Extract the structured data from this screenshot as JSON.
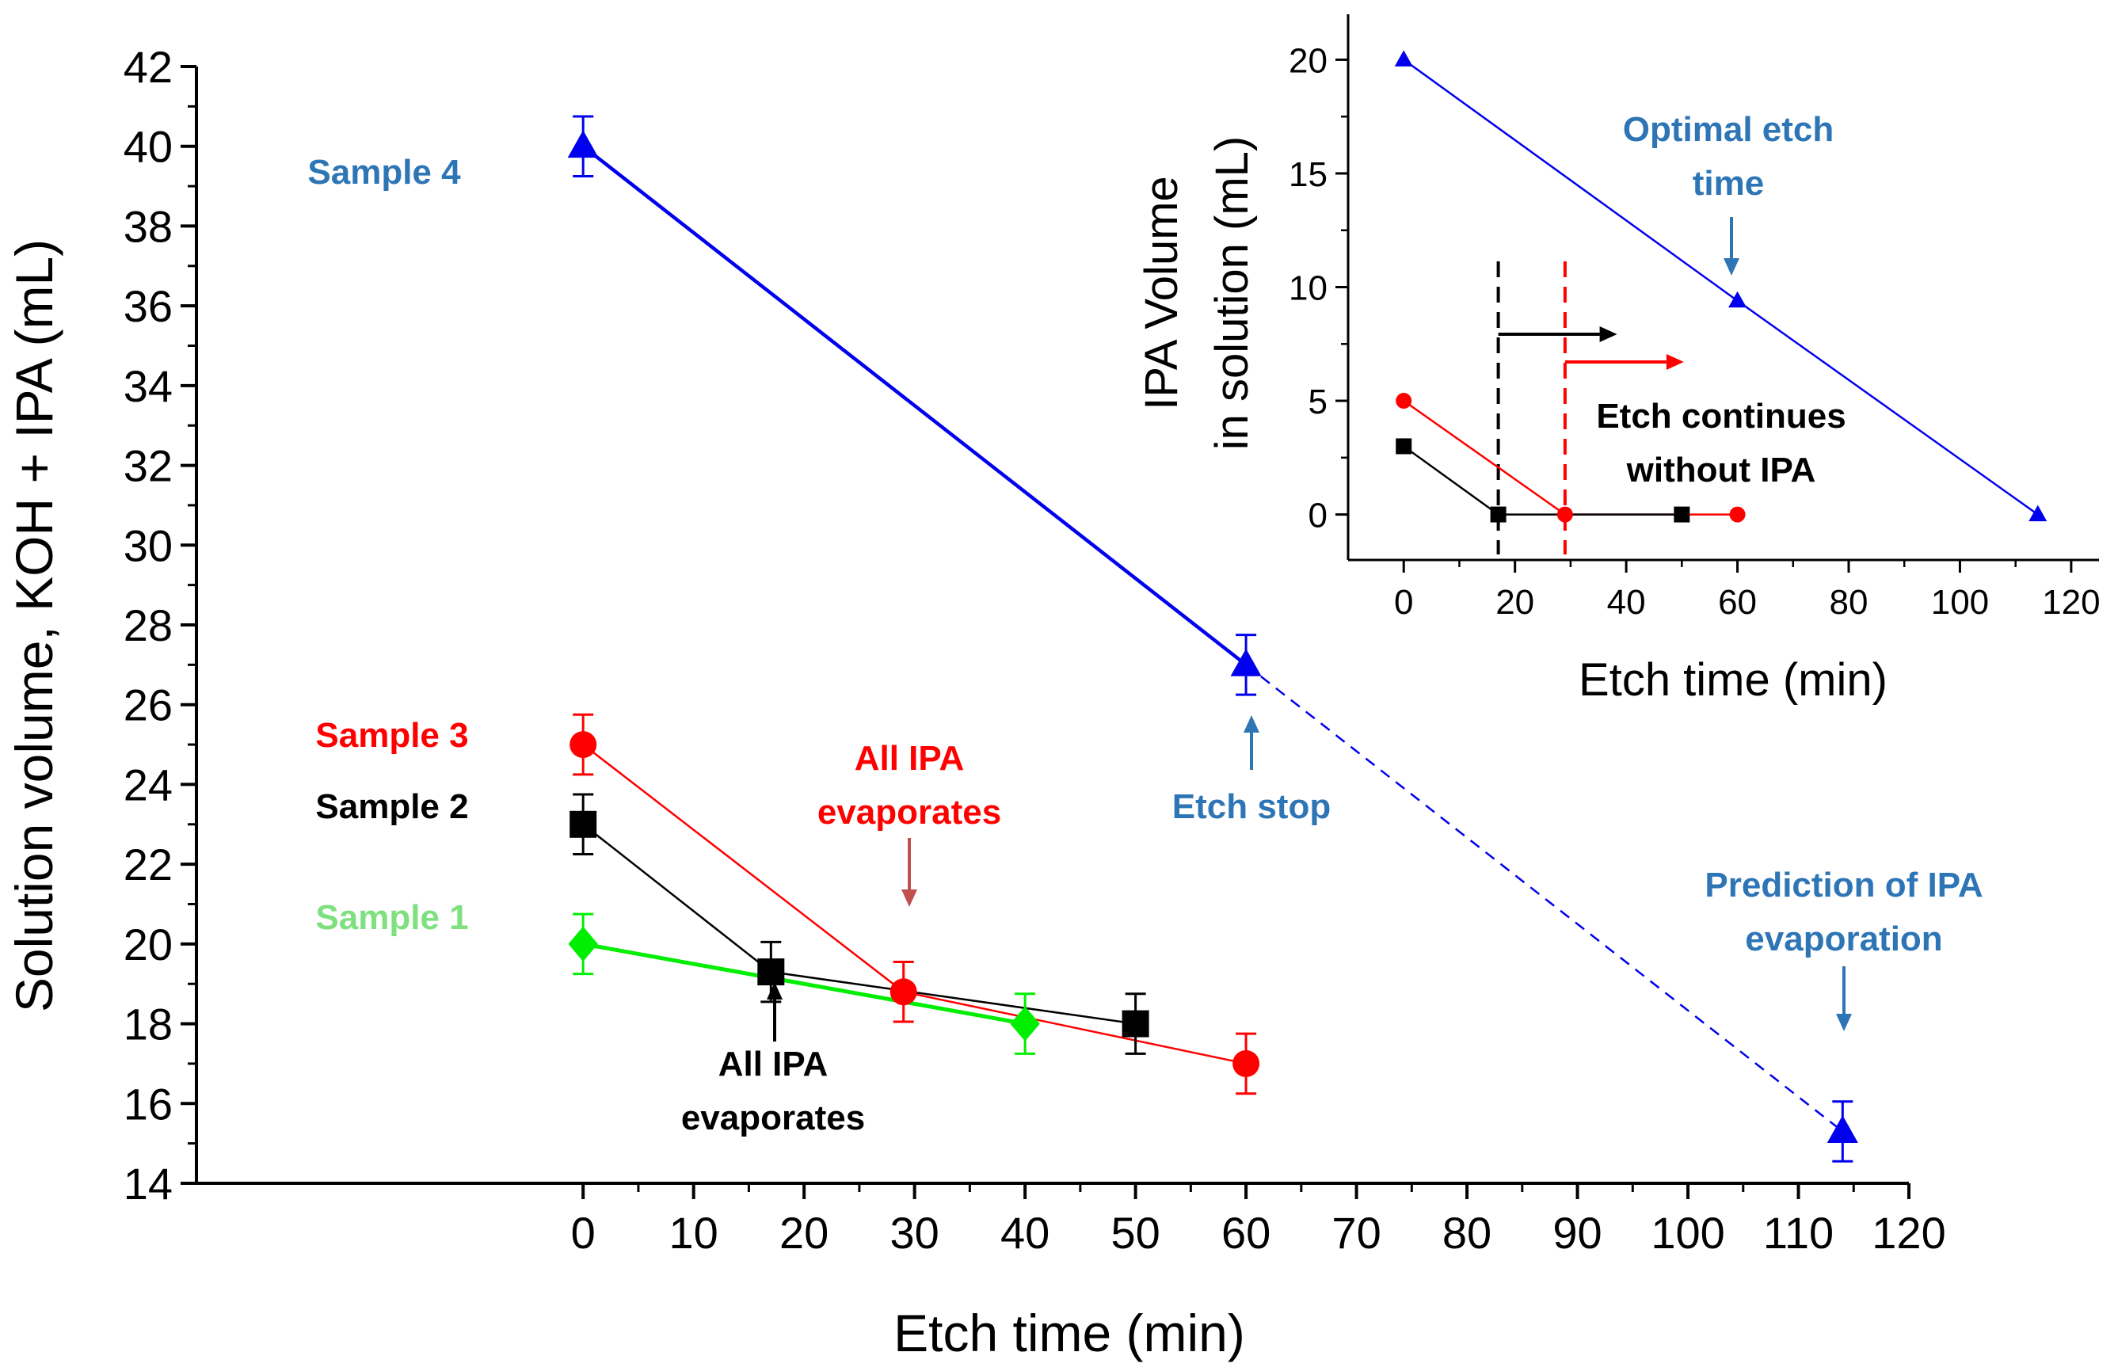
{
  "chart_data": [
    {
      "type": "line",
      "name": "main",
      "xlabel": "Etch time (min)",
      "ylabel": "Solution volume, KOH + IPA (mL)",
      "xlim": [
        -35,
        120
      ],
      "ylim": [
        14,
        42
      ],
      "xticks": [
        0,
        10,
        20,
        30,
        40,
        50,
        60,
        70,
        80,
        90,
        100,
        110,
        120
      ],
      "yticks": [
        14,
        16,
        18,
        20,
        22,
        24,
        26,
        28,
        30,
        32,
        34,
        36,
        38,
        40,
        42
      ],
      "grid": false,
      "series": [
        {
          "name": "Sample 1",
          "color": "#00ee00",
          "marker": "diamond",
          "x": [
            0,
            40
          ],
          "y": [
            20,
            18
          ],
          "err": [
            0.75,
            0.75
          ]
        },
        {
          "name": "Sample 2",
          "color": "#000000",
          "marker": "square",
          "x": [
            0,
            17,
            50
          ],
          "y": [
            23,
            19.3,
            18
          ],
          "err": [
            0.75,
            0.75,
            0.75
          ]
        },
        {
          "name": "Sample 3",
          "color": "#ff0000",
          "marker": "circle",
          "x": [
            0,
            29,
            60
          ],
          "y": [
            25,
            18.8,
            17
          ],
          "err": [
            0.75,
            0.75,
            0.75
          ]
        },
        {
          "name": "Sample 4",
          "color": "#0000ee",
          "marker": "triangle",
          "x": [
            0,
            60
          ],
          "y": [
            40,
            27
          ],
          "err": [
            0.75,
            0.75
          ]
        },
        {
          "name": "Sample 4 prediction",
          "color": "#0000ee",
          "marker": "triangle",
          "dashed": true,
          "x": [
            60,
            114
          ],
          "y": [
            27,
            15.3
          ],
          "err": [
            0,
            0.75
          ]
        }
      ],
      "annotations": [
        {
          "text": "Sample 4",
          "color": "#2e75b6"
        },
        {
          "text": "Sample 3",
          "color": "#ff0000"
        },
        {
          "text": "Sample 2",
          "color": "#000000"
        },
        {
          "text": "Sample 1",
          "color": "#7ee07e"
        },
        {
          "text": "All IPA",
          "color": "#ff0000"
        },
        {
          "text": "evaporates",
          "color": "#ff0000"
        },
        {
          "text": "All IPA",
          "color": "#000000"
        },
        {
          "text": "evaporates",
          "color": "#000000"
        },
        {
          "text": "Etch stop",
          "color": "#2e75b6"
        },
        {
          "text": "Prediction of IPA",
          "color": "#2e75b6"
        },
        {
          "text": "evaporation",
          "color": "#2e75b6"
        }
      ]
    },
    {
      "type": "line",
      "name": "inset",
      "xlabel": "Etch time (min)",
      "ylabel": "IPA Volume in solution (mL)",
      "ylabel_lines": [
        "IPA Volume",
        "in solution (mL)"
      ],
      "xlim": [
        -10,
        125
      ],
      "ylim": [
        -2,
        22
      ],
      "xticks": [
        0,
        20,
        40,
        60,
        80,
        100,
        120
      ],
      "yticks": [
        0,
        5,
        10,
        15,
        20
      ],
      "grid": false,
      "series": [
        {
          "name": "Sample 2",
          "color": "#000000",
          "marker": "square",
          "x": [
            0,
            17,
            50
          ],
          "y": [
            3,
            0,
            0
          ]
        },
        {
          "name": "Sample 3",
          "color": "#ff0000",
          "marker": "circle",
          "x": [
            0,
            29,
            60
          ],
          "y": [
            5,
            0,
            0
          ]
        },
        {
          "name": "Sample 4",
          "color": "#0000ee",
          "marker": "triangle",
          "x": [
            0,
            60,
            114
          ],
          "y": [
            20,
            9.4,
            0
          ]
        }
      ],
      "vlines": [
        {
          "x": 17,
          "color": "#000000"
        },
        {
          "x": 29,
          "color": "#ff0000"
        }
      ],
      "annotations": [
        {
          "text": "Optimal etch",
          "color": "#2e75b6"
        },
        {
          "text": "time",
          "color": "#2e75b6"
        },
        {
          "text": "Etch continues",
          "color": "#000000"
        },
        {
          "text": "without IPA",
          "color": "#000000"
        }
      ]
    }
  ]
}
